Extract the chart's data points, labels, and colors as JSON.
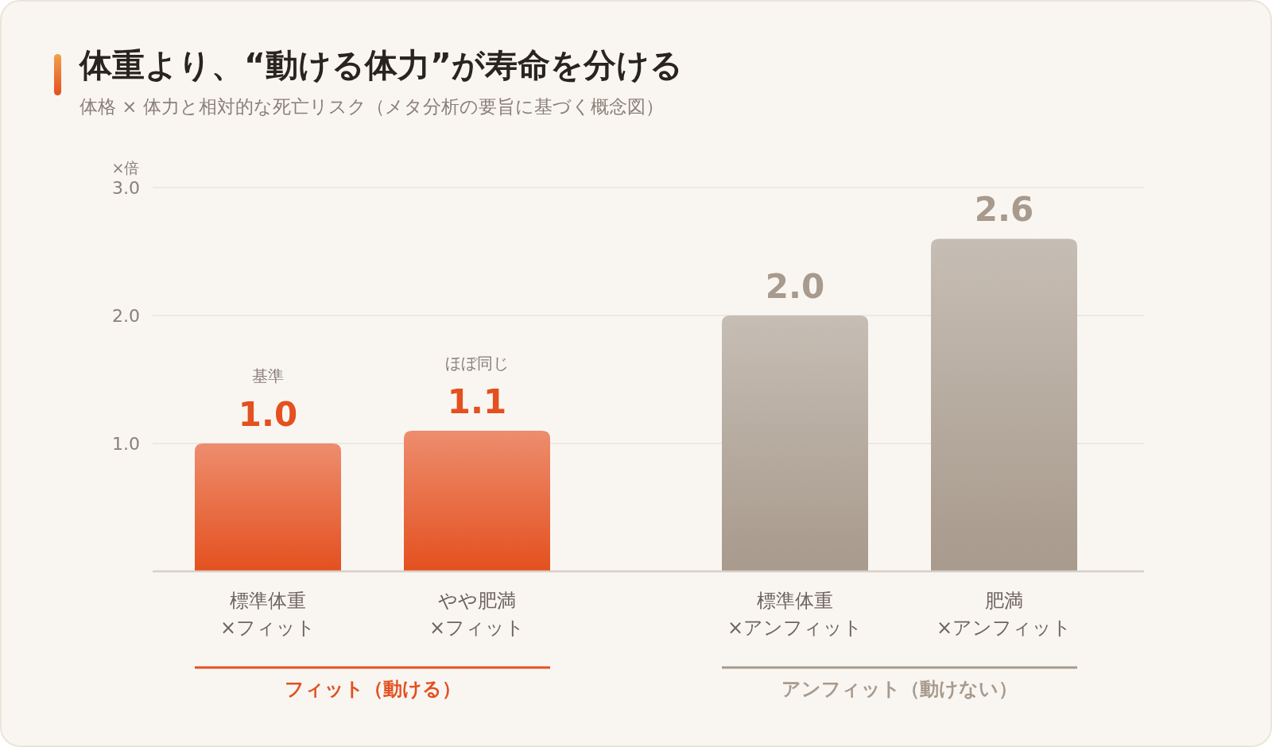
{
  "chart_data": {
    "type": "bar",
    "title": "体重より、“動ける体力”が寿命を分ける",
    "subtitle": "体格 × 体力と相対的な死亡リスク（メタ分析の要旨に基づく概念図）",
    "ylabel": "×倍",
    "categories": [
      "標準体重\n×フィット",
      "やや肥満\n×フィット",
      "標準体重\n×アンフィット",
      "肥満\n×アンフィット"
    ],
    "values": [
      1.0,
      1.1,
      2.0,
      2.6
    ],
    "colors": [
      "#e4501f",
      "#e4501f",
      "#a89a8c",
      "#a89a8c"
    ],
    "ylim": [
      0,
      3
    ],
    "yticks": [
      {
        "value": 1,
        "label": "1.0"
      },
      {
        "value": 2,
        "label": "2.0"
      },
      {
        "value": 3,
        "label": "3.0"
      }
    ],
    "grid": "y",
    "value_labels": [
      "1.0",
      "1.1",
      "2.0",
      "2.6"
    ],
    "annotations": [
      "基準",
      "ほぼ同じ",
      "フィット（動ける）",
      "アンフィット（動けない）"
    ]
  }
}
